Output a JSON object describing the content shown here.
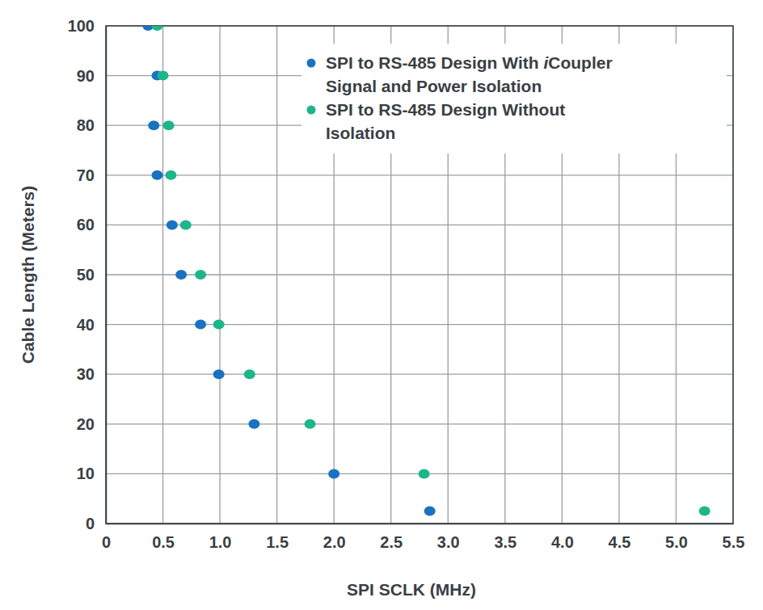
{
  "chart_data": {
    "type": "scatter",
    "x_label": "SPI SCLK (MHz)",
    "y_label": "Cable Length (Meters)",
    "xlim": [
      0,
      5.5
    ],
    "xticks": [
      0,
      0.5,
      {
        "value": 1,
        "label": "1.0"
      },
      1.5,
      {
        "value": 2,
        "label": "2.0"
      },
      2.5,
      {
        "value": 3,
        "label": "3.0"
      },
      3.5,
      {
        "value": 4,
        "label": "4.0"
      },
      4.5,
      {
        "value": 5,
        "label": "5.0"
      },
      5.5
    ],
    "ylim": [
      0,
      100
    ],
    "yticks": [
      0,
      10,
      20,
      30,
      40,
      50,
      60,
      70,
      80,
      90,
      100
    ],
    "grid": true,
    "legend": "top-right",
    "series": [
      {
        "name": "SPI to RS-485 Design With iCoupler Signal and Power Isolation",
        "color": "#1a72c0",
        "marker": "circle",
        "x": [
          0.37,
          0.45,
          0.42,
          0.45,
          0.58,
          0.66,
          0.83,
          0.99,
          1.3,
          2.0,
          2.84
        ],
        "values": [
          100,
          90,
          80,
          70,
          60,
          50,
          40,
          30,
          20,
          10,
          2.5
        ]
      },
      {
        "name": "SPI to RS-485 Design Without Isolation",
        "color": "#1db58a",
        "marker": "circle",
        "x": [
          0.45,
          0.5,
          0.55,
          0.57,
          0.7,
          0.83,
          0.99,
          1.26,
          1.79,
          2.79,
          5.25
        ],
        "values": [
          100,
          90,
          80,
          70,
          60,
          50,
          40,
          30,
          20,
          10,
          2.5
        ]
      }
    ]
  }
}
